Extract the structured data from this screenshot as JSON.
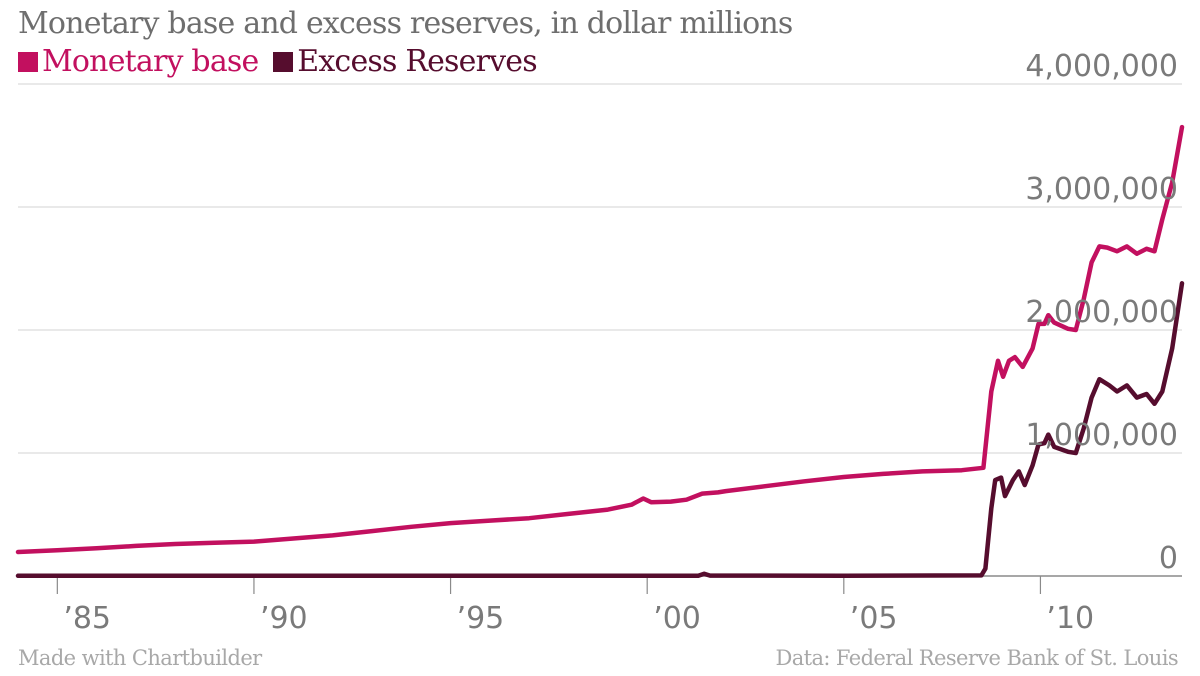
{
  "header": {
    "title": "Monetary base and excess reserves, in dollar millions"
  },
  "footer": {
    "credit": "Made with Chartbuilder",
    "source": "Data: Federal Reserve Bank of St. Louis"
  },
  "colors": {
    "monetary_base": "#c2105f",
    "excess_reserves": "#560d2e",
    "grid": "#dcdcdc",
    "axis": "#8a8a8a",
    "text": "#6e6e6e"
  },
  "chart_data": {
    "type": "line",
    "title": "Monetary base and excess reserves, in dollar millions",
    "xlabel": "",
    "ylabel": "",
    "xlim": [
      1984.0,
      2013.6
    ],
    "ylim": [
      0,
      4000000
    ],
    "grid": true,
    "legend_placement": "top-left",
    "x_ticks": [
      {
        "value": 1985,
        "label": "’85"
      },
      {
        "value": 1990,
        "label": "’90"
      },
      {
        "value": 1995,
        "label": "’95"
      },
      {
        "value": 2000,
        "label": "’00"
      },
      {
        "value": 2005,
        "label": "’05"
      },
      {
        "value": 2010,
        "label": "’10"
      }
    ],
    "y_ticks": [
      {
        "value": 0,
        "label": "0"
      },
      {
        "value": 1000000,
        "label": "1,000,000"
      },
      {
        "value": 2000000,
        "label": "2,000,000"
      },
      {
        "value": 3000000,
        "label": "3,000,000"
      },
      {
        "value": 4000000,
        "label": "4,000,000"
      }
    ],
    "series": [
      {
        "name": "Monetary base",
        "color": "#c2105f",
        "points": [
          [
            1984.0,
            195000
          ],
          [
            1985.0,
            210000
          ],
          [
            1986.0,
            225000
          ],
          [
            1987.0,
            245000
          ],
          [
            1988.0,
            260000
          ],
          [
            1989.0,
            270000
          ],
          [
            1990.0,
            280000
          ],
          [
            1991.0,
            305000
          ],
          [
            1992.0,
            330000
          ],
          [
            1993.0,
            365000
          ],
          [
            1994.0,
            400000
          ],
          [
            1995.0,
            430000
          ],
          [
            1996.0,
            450000
          ],
          [
            1997.0,
            470000
          ],
          [
            1998.0,
            505000
          ],
          [
            1999.0,
            540000
          ],
          [
            1999.6,
            580000
          ],
          [
            1999.9,
            630000
          ],
          [
            2000.1,
            600000
          ],
          [
            2000.6,
            605000
          ],
          [
            2001.0,
            620000
          ],
          [
            2001.4,
            670000
          ],
          [
            2001.8,
            680000
          ],
          [
            2002.0,
            690000
          ],
          [
            2003.0,
            730000
          ],
          [
            2004.0,
            770000
          ],
          [
            2005.0,
            805000
          ],
          [
            2006.0,
            830000
          ],
          [
            2007.0,
            850000
          ],
          [
            2008.0,
            860000
          ],
          [
            2008.55,
            880000
          ],
          [
            2008.75,
            1500000
          ],
          [
            2008.92,
            1750000
          ],
          [
            2009.05,
            1620000
          ],
          [
            2009.2,
            1750000
          ],
          [
            2009.35,
            1780000
          ],
          [
            2009.55,
            1700000
          ],
          [
            2009.8,
            1850000
          ],
          [
            2009.95,
            2050000
          ],
          [
            2010.1,
            2050000
          ],
          [
            2010.2,
            2120000
          ],
          [
            2010.35,
            2060000
          ],
          [
            2010.7,
            2010000
          ],
          [
            2010.9,
            2000000
          ],
          [
            2011.1,
            2250000
          ],
          [
            2011.3,
            2550000
          ],
          [
            2011.5,
            2680000
          ],
          [
            2011.7,
            2670000
          ],
          [
            2011.95,
            2640000
          ],
          [
            2012.2,
            2680000
          ],
          [
            2012.45,
            2620000
          ],
          [
            2012.7,
            2660000
          ],
          [
            2012.9,
            2640000
          ],
          [
            2013.1,
            2900000
          ],
          [
            2013.35,
            3200000
          ],
          [
            2013.6,
            3650000
          ]
        ]
      },
      {
        "name": "Excess Reserves",
        "color": "#560d2e",
        "points": [
          [
            1984.0,
            2000
          ],
          [
            1990.0,
            2000
          ],
          [
            1995.0,
            2000
          ],
          [
            2000.0,
            2000
          ],
          [
            2001.3,
            2000
          ],
          [
            2001.45,
            18000
          ],
          [
            2001.6,
            3000
          ],
          [
            2005.0,
            2000
          ],
          [
            2008.5,
            5000
          ],
          [
            2008.6,
            60000
          ],
          [
            2008.75,
            550000
          ],
          [
            2008.85,
            780000
          ],
          [
            2009.0,
            800000
          ],
          [
            2009.1,
            650000
          ],
          [
            2009.3,
            780000
          ],
          [
            2009.45,
            850000
          ],
          [
            2009.6,
            740000
          ],
          [
            2009.8,
            900000
          ],
          [
            2009.95,
            1070000
          ],
          [
            2010.1,
            1080000
          ],
          [
            2010.2,
            1150000
          ],
          [
            2010.35,
            1050000
          ],
          [
            2010.7,
            1010000
          ],
          [
            2010.9,
            1000000
          ],
          [
            2011.1,
            1200000
          ],
          [
            2011.3,
            1450000
          ],
          [
            2011.5,
            1600000
          ],
          [
            2011.75,
            1550000
          ],
          [
            2011.95,
            1500000
          ],
          [
            2012.2,
            1550000
          ],
          [
            2012.45,
            1450000
          ],
          [
            2012.7,
            1480000
          ],
          [
            2012.9,
            1400000
          ],
          [
            2013.1,
            1500000
          ],
          [
            2013.35,
            1850000
          ],
          [
            2013.6,
            2380000
          ]
        ]
      }
    ]
  }
}
